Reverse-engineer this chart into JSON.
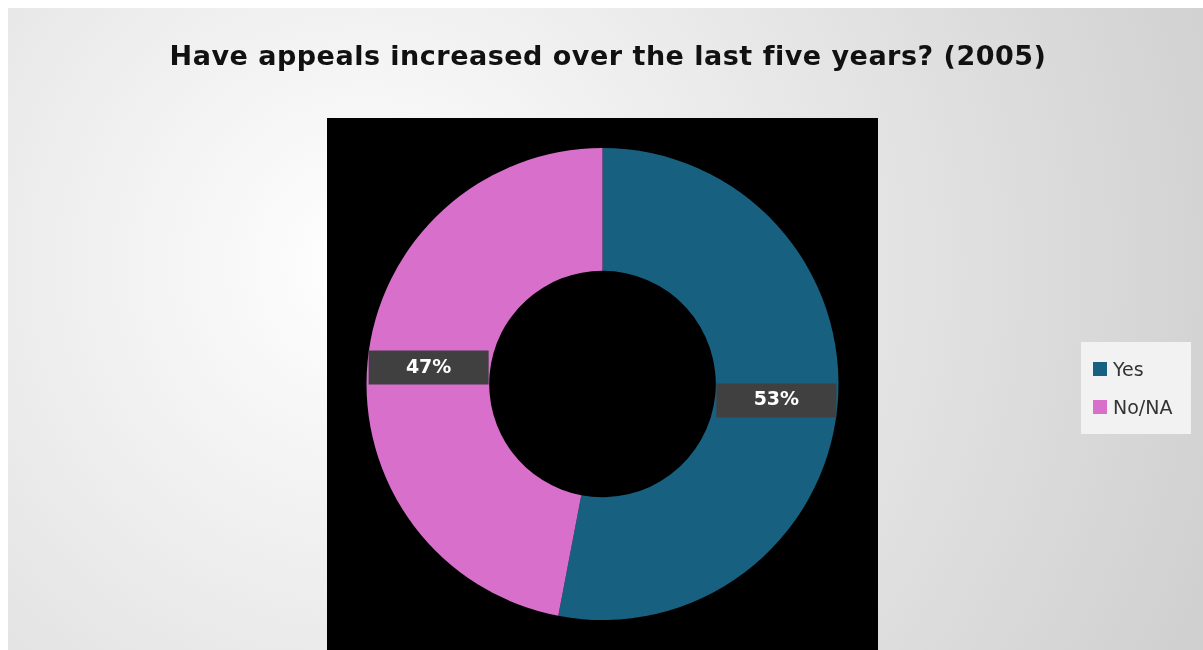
{
  "chart_data": {
    "type": "donut",
    "title": "Have appeals increased over the last five years? (2005)",
    "categories": [
      "Yes",
      "No/NA"
    ],
    "values": [
      53,
      47
    ],
    "colors": [
      "#17607f",
      "#d76fcb"
    ],
    "value_labels": [
      "53%",
      "47%"
    ],
    "legend": "right"
  }
}
